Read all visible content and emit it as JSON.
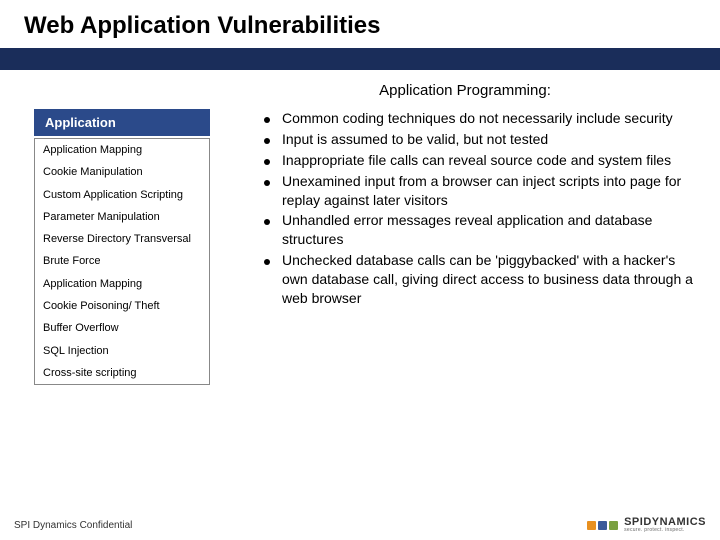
{
  "title": "Web Application Vulnerabilities",
  "subtitle": "Application Programming:",
  "title_bar_color": "#1a2d5a",
  "sidebar": {
    "header": "Application",
    "header_bg": "#2b4a8a",
    "header_fg": "#ffffff",
    "items": [
      "Application Mapping",
      "Cookie Manipulation",
      "Custom Application Scripting",
      "Parameter Manipulation",
      "Reverse Directory Transversal",
      "Brute Force",
      "Application Mapping",
      "Cookie Poisoning/ Theft",
      "Buffer Overflow",
      "SQL Injection",
      "Cross-site scripting"
    ]
  },
  "bullets": [
    "Common coding techniques do not necessarily include security",
    "Input is assumed to be valid, but not tested",
    "Inappropriate file calls can reveal source code and system files",
    "Unexamined input from a browser can inject scripts into page for replay against later visitors",
    "Unhandled error messages reveal application and database structures",
    "Unchecked database calls can be 'piggybacked' with a hacker's own database call, giving direct access to business data through a web browser"
  ],
  "footer": {
    "text": "SPI Dynamics Confidential",
    "logo_name": "SPIDYNAMICS",
    "logo_tagline": "secure. protect. inspect.",
    "logo_colors": [
      "#e89020",
      "#3a5a9a",
      "#7aa040"
    ]
  }
}
